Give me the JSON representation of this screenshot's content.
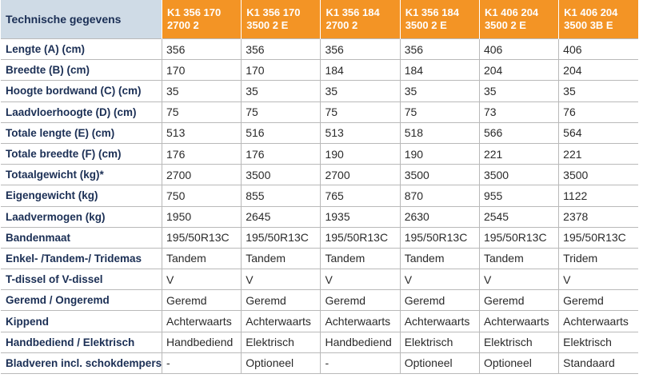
{
  "table": {
    "header_label": "Technische gegevens",
    "columns": [
      {
        "line1": "K1 356 170",
        "line2": "2700 2"
      },
      {
        "line1": "K1 356 170",
        "line2": "3500 2 E"
      },
      {
        "line1": "K1 356 184",
        "line2": "2700 2"
      },
      {
        "line1": "K1 356 184",
        "line2": "3500 2 E"
      },
      {
        "line1": "K1 406 204",
        "line2": "3500 2 E"
      },
      {
        "line1": "K1 406 204",
        "line2": "3500 3B E"
      }
    ],
    "rows": [
      {
        "label": "Lengte (A) (cm)",
        "values": [
          "356",
          "356",
          "356",
          "356",
          "406",
          "406"
        ]
      },
      {
        "label": "Breedte (B) (cm)",
        "values": [
          "170",
          "170",
          "184",
          "184",
          "204",
          "204"
        ]
      },
      {
        "label": "Hoogte bordwand (C) (cm)",
        "values": [
          "35",
          "35",
          "35",
          "35",
          "35",
          "35"
        ]
      },
      {
        "label": "Laadvloerhoogte (D) (cm)",
        "values": [
          "75",
          "75",
          "75",
          "75",
          "73",
          "76"
        ]
      },
      {
        "label": "Totale lengte (E) (cm)",
        "values": [
          "513",
          "516",
          "513",
          "518",
          "566",
          "564"
        ]
      },
      {
        "label": "Totale breedte (F) (cm)",
        "values": [
          "176",
          "176",
          "190",
          "190",
          "221",
          "221"
        ]
      },
      {
        "label": "Totaalgewicht (kg)*",
        "values": [
          "2700",
          "3500",
          "2700",
          "3500",
          "3500",
          "3500"
        ]
      },
      {
        "label": "Eigengewicht (kg)",
        "values": [
          "750",
          "855",
          "765",
          "870",
          "955",
          "1122"
        ]
      },
      {
        "label": "Laadvermogen (kg)",
        "values": [
          "1950",
          "2645",
          "1935",
          "2630",
          "2545",
          "2378"
        ]
      },
      {
        "label": "Bandenmaat",
        "values": [
          "195/50R13C",
          "195/50R13C",
          "195/50R13C",
          "195/50R13C",
          "195/50R13C",
          "195/50R13C"
        ]
      },
      {
        "label": "Enkel- /Tandem-/ Tridemas",
        "values": [
          "Tandem",
          "Tandem",
          "Tandem",
          "Tandem",
          "Tandem",
          "Tridem"
        ]
      },
      {
        "label": "T-dissel of V-dissel",
        "values": [
          "V",
          "V",
          "V",
          "V",
          "V",
          "V"
        ]
      },
      {
        "label": "Geremd / Ongeremd",
        "values": [
          "Geremd",
          "Geremd",
          "Geremd",
          "Geremd",
          "Geremd",
          "Geremd"
        ]
      },
      {
        "label": "Kippend",
        "values": [
          "Achterwaarts",
          "Achterwaarts",
          "Achterwaarts",
          "Achterwaarts",
          "Achterwaarts",
          "Achterwaarts"
        ]
      },
      {
        "label": "Handbediend / Elektrisch",
        "values": [
          "Handbediend",
          "Elektrisch",
          "Handbediend",
          "Elektrisch",
          "Elektrisch",
          "Elektrisch"
        ]
      },
      {
        "label": "Bladveren incl. schokdempers",
        "values": [
          "-",
          "Optioneel",
          "-",
          "Optioneel",
          "Optioneel",
          "Standaard"
        ]
      }
    ]
  }
}
